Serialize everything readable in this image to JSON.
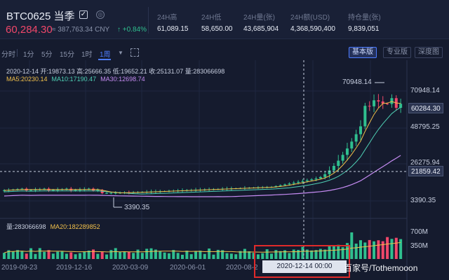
{
  "header": {
    "symbol": "BTC0625 当季",
    "last_price": "60,284.30",
    "cny_price": "≈ 387,763.34 CNY",
    "change": "↑ +0.84%",
    "stats": [
      {
        "label": "24H高",
        "value": "61,089.15"
      },
      {
        "label": "24H低",
        "value": "58,650.00"
      },
      {
        "label": "24H量(张)",
        "value": "43,685,904"
      },
      {
        "label": "24H额(USD)",
        "value": "4,368,590,400"
      },
      {
        "label": "持仓量(张)",
        "value": "9,839,051"
      }
    ]
  },
  "toolbar": {
    "intervals": [
      "分时",
      "1分",
      "5分",
      "15分",
      "1时",
      "1周"
    ],
    "active_interval": "1周",
    "views": [
      "基本版",
      "专业版",
      "深度图"
    ],
    "active_view": "基本版"
  },
  "chart_data": {
    "type": "candlestick",
    "info": {
      "ohlc": "2020-12-14  开:19873.13  高:25666.35  低:19652.21  收:25131.07  量:283066698",
      "ma5": "MA5:20230.14",
      "ma10": "MA10:17190.47",
      "ma30": "MA30:12698.74"
    },
    "volume_info": {
      "total": "量:283066698",
      "ma20": "MA20:182289852"
    },
    "y_axis_labels": [
      "70948.14",
      "48795.25",
      "26275.94",
      "3390.35"
    ],
    "volume_axis_labels": [
      "700M",
      "350M"
    ],
    "price_tags": {
      "current": "60284.30",
      "crosshair": "21859.42"
    },
    "x_axis_labels": [
      "2019-09-23",
      "2019-12-16",
      "2020-03-09",
      "2020-06-01",
      "2020-08-2"
    ],
    "crosshair_date": "2020-12-14 00:00",
    "callout_high": "70948.14",
    "callout_low": "3390.35",
    "watermark": "百家号/Tothemooon",
    "colors": {
      "up": "#2fbf8f",
      "down": "#f0476a",
      "ma5": "#f1c04b",
      "ma10": "#4fd0b5",
      "ma30": "#c58bf2"
    }
  }
}
